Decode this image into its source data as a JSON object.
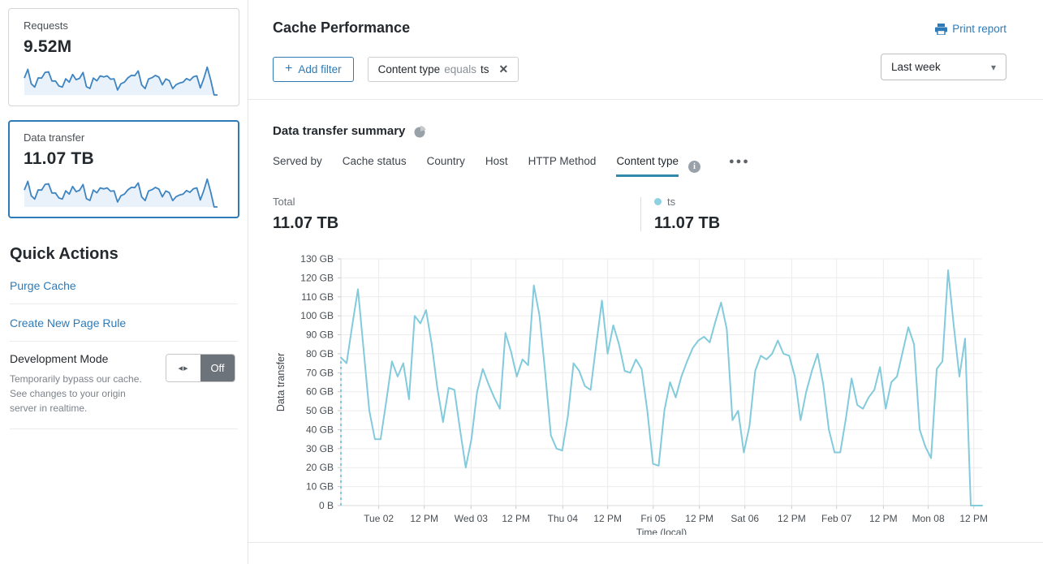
{
  "sidebar": {
    "cards": [
      {
        "label": "Requests",
        "value": "9.52M",
        "selected": false,
        "sparkline": [
          75,
          114,
          50,
          35,
          76,
          75,
          100,
          103,
          62,
          62,
          40,
          35,
          72,
          57,
          91,
          68,
          74,
          100,
          37,
          29,
          75,
          63,
          85,
          80,
          85,
          70,
          72,
          22,
          50,
          57,
          76,
          87,
          86,
          107,
          45,
          28,
          71,
          77,
          87,
          79,
          45,
          71,
          64,
          28,
          46,
          53,
          57,
          73,
          65,
          81,
          85,
          31,
          72,
          124,
          68,
          0,
          0
        ]
      },
      {
        "label": "Data transfer",
        "value": "11.07 TB",
        "selected": true,
        "sparkline": [
          75,
          114,
          50,
          35,
          76,
          75,
          100,
          103,
          62,
          62,
          40,
          35,
          72,
          57,
          91,
          68,
          74,
          100,
          37,
          29,
          75,
          63,
          85,
          80,
          85,
          70,
          72,
          22,
          50,
          57,
          76,
          87,
          86,
          107,
          45,
          28,
          71,
          77,
          87,
          79,
          45,
          71,
          64,
          28,
          46,
          53,
          57,
          73,
          65,
          81,
          85,
          31,
          72,
          124,
          68,
          0,
          0
        ]
      }
    ],
    "quick_actions": {
      "title": "Quick Actions",
      "links": [
        {
          "label": "Purge Cache"
        },
        {
          "label": "Create New Page Rule"
        }
      ],
      "development_mode": {
        "title": "Development Mode",
        "description": "Temporarily bypass our cache. See changes to your origin server in realtime.",
        "toggle_state": "Off"
      }
    }
  },
  "header": {
    "title": "Cache Performance",
    "print_label": "Print report"
  },
  "filters": {
    "add_label": "Add filter",
    "chips": [
      {
        "field": "Content type",
        "operator": "equals",
        "value": "ts"
      }
    ],
    "time_range": "Last week"
  },
  "summary": {
    "title": "Data transfer summary",
    "tabs": [
      {
        "label": "Served by",
        "active": false
      },
      {
        "label": "Cache status",
        "active": false
      },
      {
        "label": "Country",
        "active": false
      },
      {
        "label": "Host",
        "active": false
      },
      {
        "label": "HTTP Method",
        "active": false
      },
      {
        "label": "Content type",
        "active": true
      }
    ],
    "total_label": "Total",
    "total_value": "11.07 TB",
    "legend": [
      {
        "label": "ts",
        "value": "11.07 TB",
        "color": "#8ed1e0"
      }
    ]
  },
  "chart_data": {
    "type": "line",
    "title": "Data transfer summary",
    "xlabel": "Time (local)",
    "ylabel": "Data transfer",
    "unit": "GB",
    "ylim": [
      0,
      130
    ],
    "grid": true,
    "leading_dashed_drop": true,
    "y_ticks": [
      {
        "value": 0,
        "label": "0 B"
      },
      {
        "value": 10,
        "label": "10 GB"
      },
      {
        "value": 20,
        "label": "20 GB"
      },
      {
        "value": 30,
        "label": "30 GB"
      },
      {
        "value": 40,
        "label": "40 GB"
      },
      {
        "value": 50,
        "label": "50 GB"
      },
      {
        "value": 60,
        "label": "60 GB"
      },
      {
        "value": 70,
        "label": "70 GB"
      },
      {
        "value": 80,
        "label": "80 GB"
      },
      {
        "value": 90,
        "label": "90 GB"
      },
      {
        "value": 100,
        "label": "100 GB"
      },
      {
        "value": 110,
        "label": "110 GB"
      },
      {
        "value": 120,
        "label": "120 GB"
      },
      {
        "value": 130,
        "label": "130 GB"
      }
    ],
    "x_ticks": [
      {
        "label": "Tue 02",
        "f": 0.059
      },
      {
        "label": "12 PM",
        "f": 0.13
      },
      {
        "label": "Wed 03",
        "f": 0.203
      },
      {
        "label": "12 PM",
        "f": 0.273
      },
      {
        "label": "Thu 04",
        "f": 0.346
      },
      {
        "label": "12 PM",
        "f": 0.416
      },
      {
        "label": "Fri 05",
        "f": 0.487
      },
      {
        "label": "12 PM",
        "f": 0.559
      },
      {
        "label": "Sat 06",
        "f": 0.63
      },
      {
        "label": "12 PM",
        "f": 0.703
      },
      {
        "label": "Feb 07",
        "f": 0.773
      },
      {
        "label": "12 PM",
        "f": 0.846
      },
      {
        "label": "Mon 08",
        "f": 0.916
      },
      {
        "label": "12 PM",
        "f": 0.987
      }
    ],
    "series": [
      {
        "name": "ts",
        "color": "#82cbdc",
        "values": [
          78,
          75,
          95,
          114,
          82,
          50,
          35,
          35,
          55,
          76,
          68,
          75,
          56,
          100,
          96,
          103,
          85,
          62,
          44,
          62,
          61,
          40,
          20,
          35,
          60,
          72,
          64,
          57,
          51,
          91,
          81,
          68,
          77,
          74,
          116,
          100,
          70,
          37,
          30,
          29,
          47,
          75,
          71,
          63,
          61,
          85,
          108,
          80,
          95,
          85,
          71,
          70,
          77,
          72,
          50,
          22,
          21,
          50,
          65,
          57,
          68,
          76,
          83,
          87,
          89,
          86,
          97,
          107,
          93,
          45,
          50,
          28,
          42,
          71,
          79,
          77,
          80,
          87,
          80,
          79,
          68,
          45,
          60,
          71,
          80,
          64,
          40,
          28,
          28,
          46,
          67,
          53,
          51,
          57,
          61,
          73,
          51,
          65,
          68,
          81,
          94,
          85,
          40,
          31,
          25,
          72,
          76,
          124,
          95,
          68,
          88,
          0,
          0,
          0
        ]
      }
    ]
  },
  "colors": {
    "accent": "#2e7bb8",
    "chart_line": "#82cbdc",
    "spark_stroke": "#3e84c1",
    "spark_fill": "#e9f2fa",
    "grid": "#ececec",
    "axis": "#d9d9d9",
    "toggle_off_bg": "#6d737a"
  }
}
